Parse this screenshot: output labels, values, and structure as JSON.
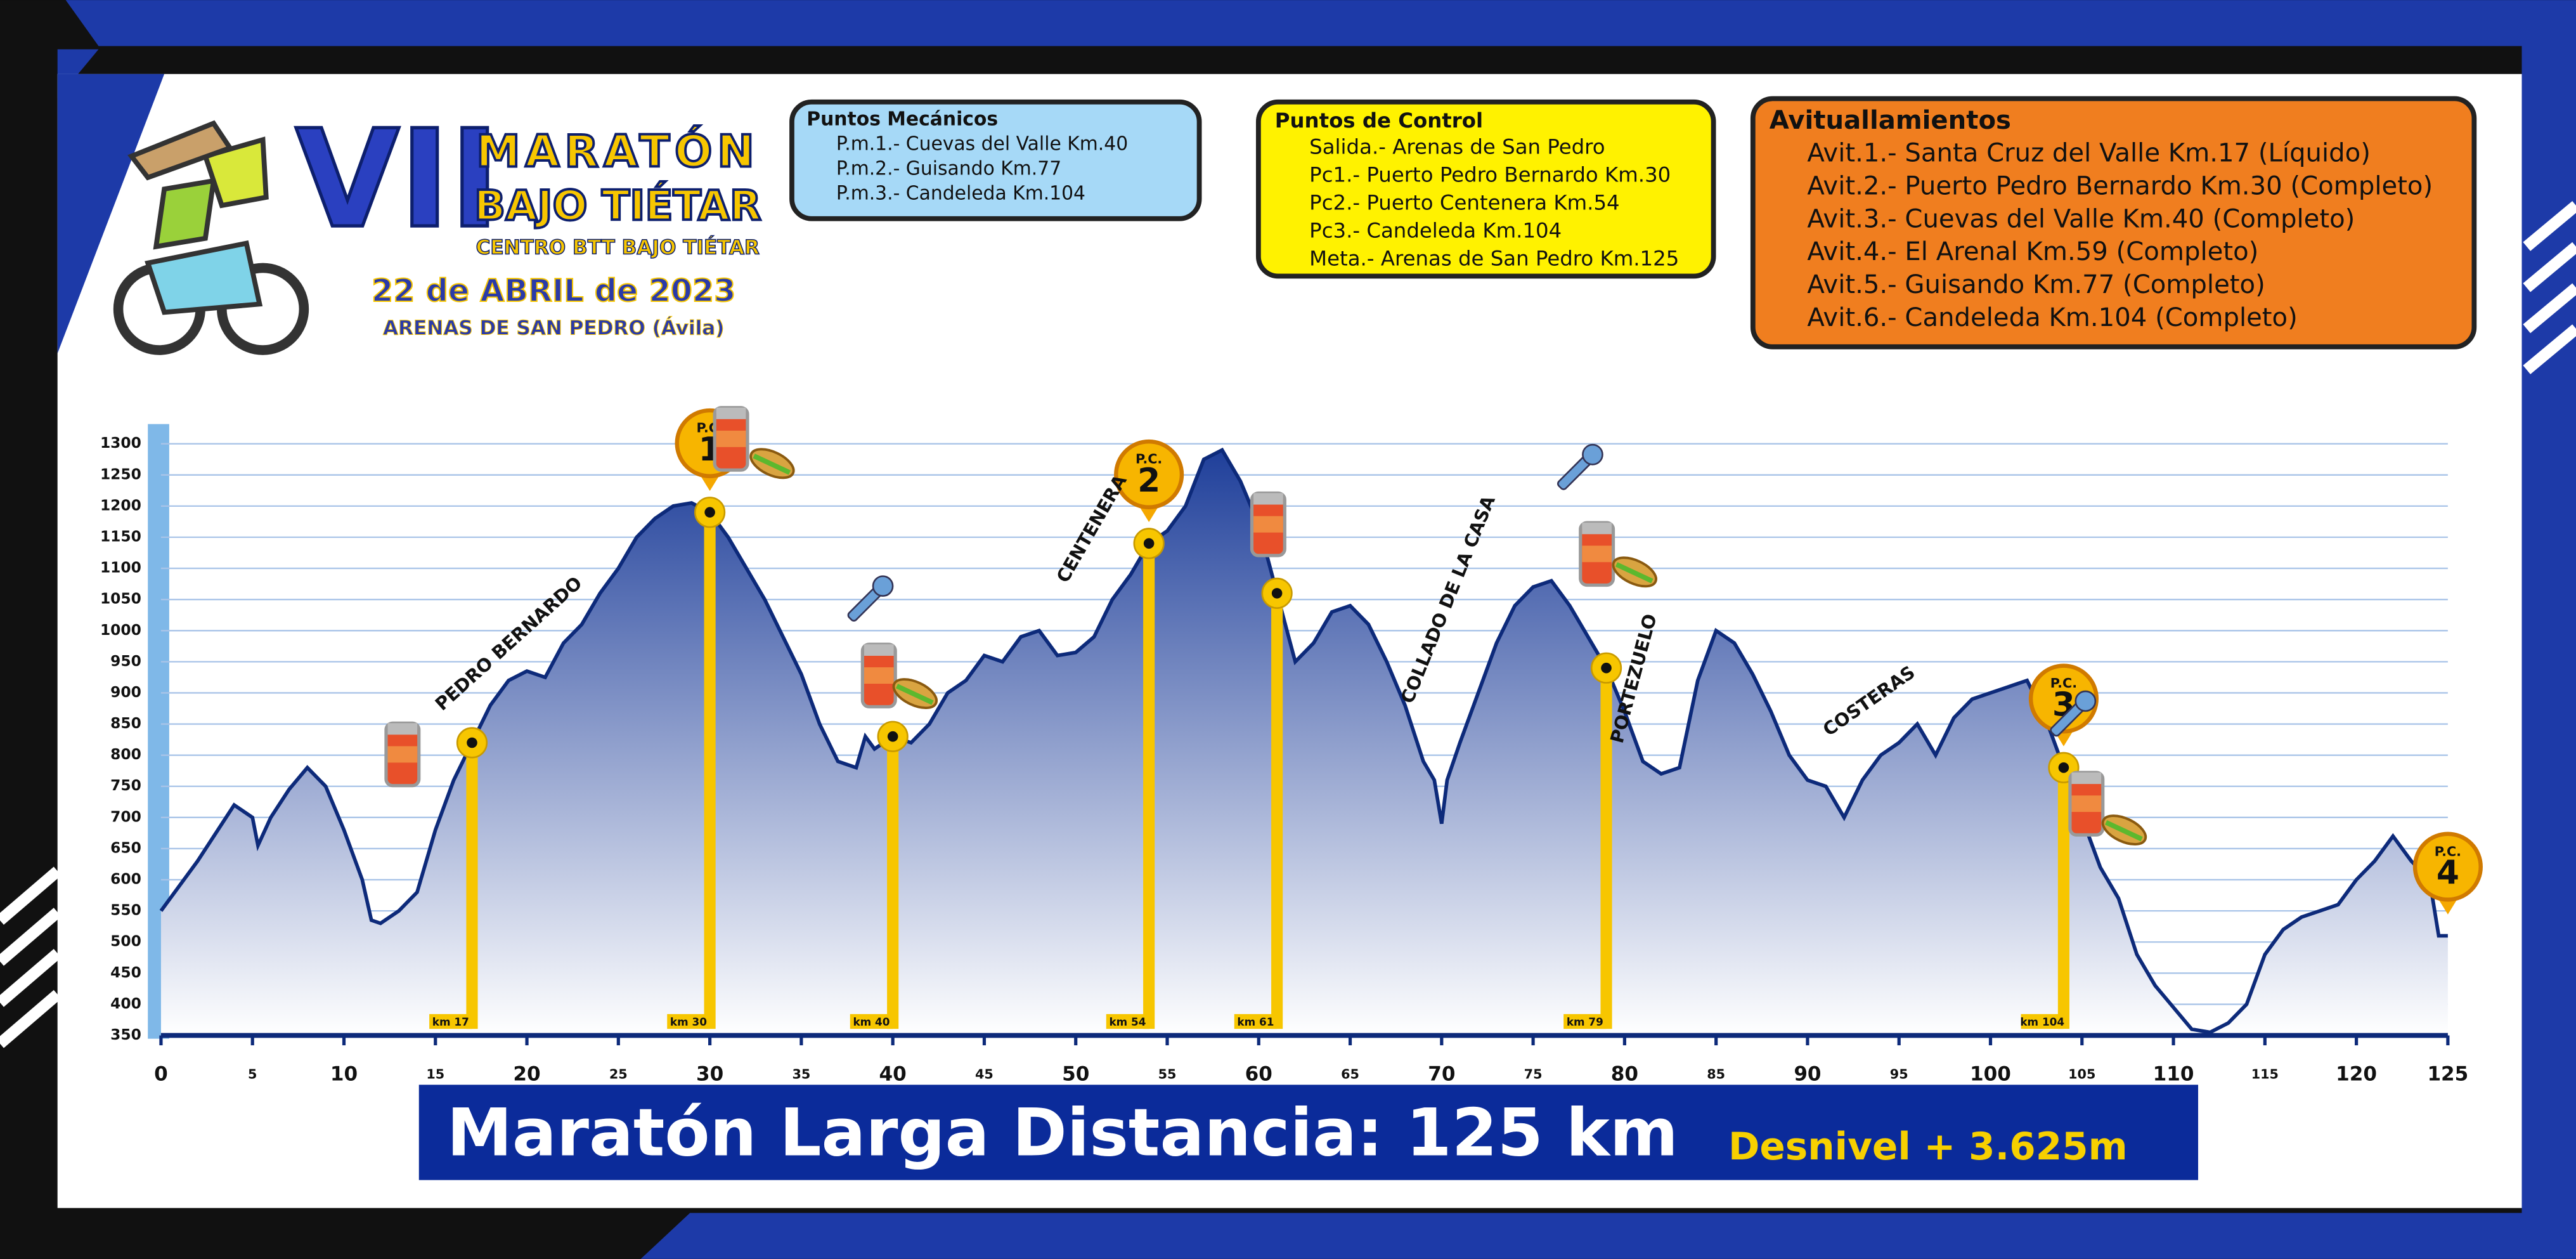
{
  "header": {
    "edition": "VII",
    "title_line1": "MARATÓN",
    "title_line2": "BAJO TIÉTAR",
    "organizer": "CENTRO BTT BAJO TIÉTAR",
    "date": "22 de ABRIL de 2023",
    "place": "ARENAS DE SAN PEDRO (Ávila)"
  },
  "info_boxes": [
    {
      "title": "Puntos Mecánicos",
      "items": [
        "P.m.1.- Cuevas del Valle Km.40",
        "P.m.2.- Guisando Km.77",
        "P.m.3.- Candeleda Km.104"
      ]
    },
    {
      "title": "Puntos de Control",
      "items": [
        "Salida.- Arenas de San Pedro",
        "Pc1.- Puerto Pedro Bernardo Km.30",
        "Pc2.- Puerto Centenera Km.54",
        "Pc3.- Candeleda Km.104",
        "Meta.- Arenas de San Pedro Km.125"
      ]
    },
    {
      "title": "Avituallamientos",
      "items": [
        "Avit.1.- Santa Cruz del Valle Km.17 (Líquido)",
        "Avit.2.- Puerto Pedro Bernardo Km.30 (Completo)",
        "Avit.3.- Cuevas del Valle Km.40 (Completo)",
        "Avit.4.- El Arenal Km.59 (Completo)",
        "Avit.5.- Guisando Km.77 (Completo)",
        "Avit.6.- Candeleda Km.104 (Completo)"
      ]
    }
  ],
  "chart_data": {
    "type": "area",
    "x": [
      0,
      2,
      4,
      5,
      5.3,
      6,
      7,
      8,
      9,
      10,
      11,
      11.5,
      12,
      13,
      14,
      15,
      16,
      17,
      18,
      19,
      20,
      21,
      22,
      23,
      24,
      25,
      26,
      27,
      28,
      29,
      30,
      31,
      32,
      33,
      34,
      35,
      36,
      37,
      38,
      38.5,
      39,
      40,
      41,
      42,
      43,
      44,
      45,
      46,
      47,
      48,
      49,
      50,
      51,
      52,
      53,
      54,
      55,
      56,
      57,
      58,
      59,
      60,
      61,
      62,
      63,
      64,
      65,
      66,
      67,
      68,
      69,
      69.6,
      70,
      70.3,
      71,
      72,
      73,
      74,
      75,
      76,
      77,
      78,
      79,
      80,
      81,
      82,
      83,
      84,
      85,
      86,
      87,
      88,
      89,
      90,
      91,
      92,
      93,
      94,
      95,
      96,
      97,
      98,
      99,
      100,
      101,
      102,
      103,
      104,
      105,
      106,
      107,
      108,
      109,
      110,
      111,
      112,
      113,
      114,
      115,
      116,
      117,
      118,
      119,
      120,
      121,
      122,
      123,
      124,
      124.5,
      125
    ],
    "values": [
      550,
      630,
      720,
      700,
      655,
      700,
      745,
      780,
      750,
      680,
      600,
      535,
      530,
      550,
      580,
      680,
      760,
      820,
      880,
      920,
      935,
      925,
      980,
      1010,
      1060,
      1100,
      1150,
      1180,
      1200,
      1205,
      1190,
      1150,
      1100,
      1050,
      990,
      930,
      850,
      790,
      780,
      830,
      810,
      830,
      820,
      850,
      900,
      920,
      960,
      950,
      990,
      1000,
      960,
      965,
      990,
      1050,
      1090,
      1140,
      1160,
      1200,
      1275,
      1290,
      1240,
      1170,
      1060,
      950,
      980,
      1030,
      1040,
      1010,
      950,
      880,
      790,
      760,
      690,
      760,
      820,
      900,
      980,
      1040,
      1070,
      1080,
      1040,
      990,
      940,
      870,
      790,
      770,
      780,
      920,
      1000,
      980,
      930,
      870,
      800,
      760,
      750,
      700,
      760,
      800,
      820,
      850,
      800,
      860,
      890,
      900,
      910,
      920,
      860,
      780,
      700,
      620,
      570,
      480,
      430,
      395,
      360,
      355,
      370,
      400,
      480,
      520,
      540,
      550,
      560,
      600,
      630,
      670,
      630,
      600,
      510,
      510
    ],
    "color": "#0d2a7a",
    "fill_color": "#1f3f9a",
    "xlim": [
      0,
      125
    ],
    "xticks": [
      0,
      5,
      10,
      15,
      20,
      25,
      30,
      35,
      40,
      45,
      50,
      55,
      60,
      65,
      70,
      75,
      80,
      85,
      90,
      95,
      100,
      105,
      110,
      115,
      120,
      125
    ],
    "ylim": [
      350,
      1300
    ],
    "yticks": [
      350,
      400,
      450,
      500,
      550,
      600,
      650,
      700,
      750,
      800,
      850,
      900,
      950,
      1000,
      1050,
      1100,
      1150,
      1200,
      1250,
      1300
    ],
    "grid": true,
    "markers": [
      {
        "x": 17,
        "label": "km 17"
      },
      {
        "x": 30,
        "label": "km 30"
      },
      {
        "x": 40,
        "label": "km 40"
      },
      {
        "x": 54,
        "label": "km 54"
      },
      {
        "x": 61,
        "label": "km 61"
      },
      {
        "x": 79,
        "label": "km 79"
      },
      {
        "x": 104,
        "label": "km 104"
      }
    ],
    "control_point_prefix": "P.C.",
    "control_points": [
      {
        "x": 30,
        "label": "1"
      },
      {
        "x": 54,
        "label": "2"
      },
      {
        "x": 104,
        "label": "3"
      },
      {
        "x": 125,
        "label": "4"
      }
    ],
    "annotations": [
      "PEDRO BERNARDO",
      "CENTENERA",
      "COLLADO DE LA CASA",
      "PORTEZUELO",
      "COSTERAS"
    ]
  },
  "footer": {
    "title": "Maratón Larga Distancia: 125 km",
    "elevation_gain": "Desnivel + 3.625m"
  }
}
